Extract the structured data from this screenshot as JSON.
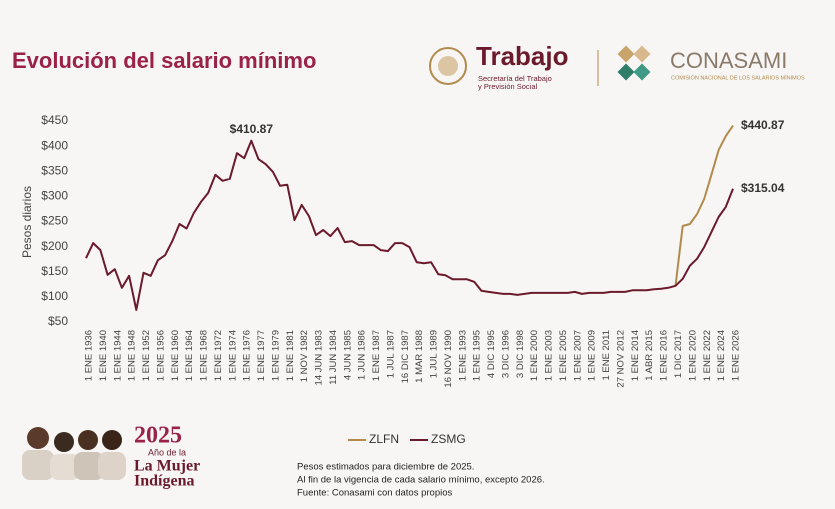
{
  "header": {
    "trabajo": "Trabajo",
    "trabajo_sub": [
      "Secretaría del Trabajo",
      "y Previsión Social"
    ],
    "conasami": "CONASAMI",
    "conasami_sub": "COMISIÓN NACIONAL DE LOS SALARIOS MÍNIMOS"
  },
  "badge": {
    "year": "2025",
    "line1": "Año de la",
    "line2": "La Mujer",
    "line3": "Indígena"
  },
  "notes": [
    "Pesos estimados para diciembre de 2025.",
    "Al fin de la vigencia de cada salario mínimo, excepto 2026.",
    "Fuente: Conasami con datos propios"
  ],
  "chart_data": {
    "type": "line",
    "title": "Evolución del salario mínimo",
    "y_label": "Pesos diarios",
    "categories": [
      "1 ENE 1936",
      null,
      "1 ENE 1940",
      null,
      "1 ENE 1944",
      null,
      "1 ENE 1948",
      null,
      "1 ENE 1952",
      null,
      "1 ENE 1956",
      null,
      "1 ENE 1960",
      null,
      "1 ENE 1964",
      null,
      "1 ENE 1968",
      null,
      "1 ENE 1972",
      null,
      "1 ENE 1974",
      null,
      "1 ENE 1976",
      null,
      "1 ENE 1977",
      null,
      "1 ENE 1979",
      null,
      "1 ENE 1981",
      null,
      "1 NOV 1982",
      null,
      "14 JUN 1983",
      null,
      "11 JUN 1984",
      null,
      "4 JUN 1985",
      null,
      "1 JUN 1986",
      null,
      "1 ENE 1987",
      null,
      "1 JUL 1987",
      null,
      "16 DIC 1987",
      null,
      "1 MAR 1988",
      null,
      "1 JUL 1989",
      null,
      "16 NOV 1990",
      null,
      "1 ENE 1993",
      null,
      "1 ENE 1995",
      null,
      "4 DIC 1995",
      null,
      "3 DIC 1996",
      null,
      "3 DIC 1998",
      null,
      "1 ENE 2000",
      null,
      "1 ENE 2003",
      null,
      "1 ENE 2005",
      null,
      "1 ENE 2007",
      null,
      "1 ENE 2009",
      null,
      "1 ENE 2011",
      null,
      "27 NOV 2012",
      null,
      "1 ENE 2014",
      null,
      "1 ABR 2015",
      null,
      "1 ENE 2016",
      null,
      "1 DIC 2017",
      null,
      "1 ENE 2020",
      null,
      "1 ENE 2022",
      null,
      "1 ENE 2024",
      null,
      "1 ENE 2026"
    ],
    "series": [
      {
        "name": "ZLFN",
        "color": "#b28b4c",
        "values": [
          null,
          null,
          null,
          null,
          null,
          null,
          null,
          null,
          null,
          null,
          null,
          null,
          null,
          null,
          null,
          null,
          null,
          null,
          null,
          null,
          null,
          null,
          null,
          null,
          null,
          null,
          null,
          null,
          null,
          null,
          null,
          null,
          null,
          null,
          null,
          null,
          null,
          null,
          null,
          null,
          null,
          null,
          null,
          null,
          null,
          null,
          null,
          null,
          null,
          null,
          null,
          null,
          null,
          null,
          null,
          null,
          null,
          null,
          null,
          null,
          null,
          null,
          null,
          null,
          null,
          null,
          null,
          null,
          null,
          null,
          null,
          null,
          null,
          null,
          null,
          null,
          null,
          null,
          null,
          null,
          null,
          null,
          122,
          241,
          245,
          265,
          295,
          343,
          392,
          420,
          440.87
        ],
        "value_labels": [
          null,
          null,
          null,
          null,
          null,
          null,
          null,
          null,
          null,
          null,
          null,
          null,
          null,
          null,
          null,
          null,
          null,
          null,
          null,
          null,
          null,
          null,
          null,
          null,
          null,
          null,
          null,
          null,
          null,
          null,
          null,
          null,
          null,
          null,
          null,
          null,
          null,
          null,
          null,
          null,
          null,
          null,
          null,
          null,
          null,
          null,
          null,
          null,
          null,
          null,
          null,
          null,
          null,
          null,
          null,
          null,
          null,
          null,
          null,
          null,
          null,
          null,
          null,
          null,
          null,
          null,
          null,
          null,
          null,
          null,
          null,
          null,
          null,
          null,
          null,
          null,
          null,
          null,
          null,
          null,
          null,
          null,
          null,
          null,
          null,
          null,
          null,
          null,
          null,
          null,
          "$440.87"
        ]
      },
      {
        "name": "ZSMG",
        "color": "#6b1a2c",
        "values": [
          177,
          207,
          193,
          144,
          155,
          118,
          142,
          74,
          148,
          142,
          173,
          183,
          211,
          245,
          236,
          267,
          289,
          307,
          343,
          331,
          335,
          386,
          376,
          410.87,
          374,
          364,
          349,
          321,
          323,
          253,
          283,
          261,
          223,
          233,
          221,
          237,
          209,
          211,
          203,
          203,
          203,
          193,
          191,
          207,
          207,
          199,
          169,
          167,
          169,
          145,
          143,
          135,
          135,
          135,
          130,
          112,
          110,
          108,
          106,
          106,
          104,
          106,
          108,
          108,
          108,
          108,
          108,
          108,
          110,
          106,
          108,
          108,
          108,
          110,
          110,
          110,
          113,
          113,
          113,
          115,
          116,
          118,
          122,
          136,
          162,
          176,
          199,
          229,
          259,
          279,
          315.04
        ],
        "value_labels": [
          null,
          null,
          null,
          null,
          null,
          null,
          null,
          null,
          null,
          null,
          null,
          null,
          null,
          null,
          null,
          null,
          null,
          null,
          null,
          null,
          null,
          null,
          null,
          "$410.87",
          null,
          null,
          null,
          null,
          null,
          null,
          null,
          null,
          null,
          null,
          null,
          null,
          null,
          null,
          null,
          null,
          null,
          null,
          null,
          null,
          null,
          null,
          null,
          null,
          null,
          null,
          null,
          null,
          null,
          null,
          null,
          null,
          null,
          null,
          null,
          null,
          null,
          null,
          null,
          null,
          null,
          null,
          null,
          null,
          null,
          null,
          null,
          null,
          null,
          null,
          null,
          null,
          null,
          null,
          null,
          null,
          null,
          null,
          null,
          null,
          null,
          null,
          null,
          null,
          null,
          null,
          "$315.04"
        ]
      }
    ],
    "ylim": [
      50,
      450
    ],
    "yticks": [
      {
        "value": 50,
        "label": "$50"
      },
      {
        "value": 100,
        "label": "$100"
      },
      {
        "value": 150,
        "label": "$150"
      },
      {
        "value": 200,
        "label": "$200"
      },
      {
        "value": 250,
        "label": "$250"
      },
      {
        "value": 300,
        "label": "$300"
      },
      {
        "value": 350,
        "label": "$350"
      },
      {
        "value": 400,
        "label": "$400"
      },
      {
        "value": 450,
        "label": "$450"
      }
    ],
    "grid": false,
    "legend": "bottom"
  }
}
